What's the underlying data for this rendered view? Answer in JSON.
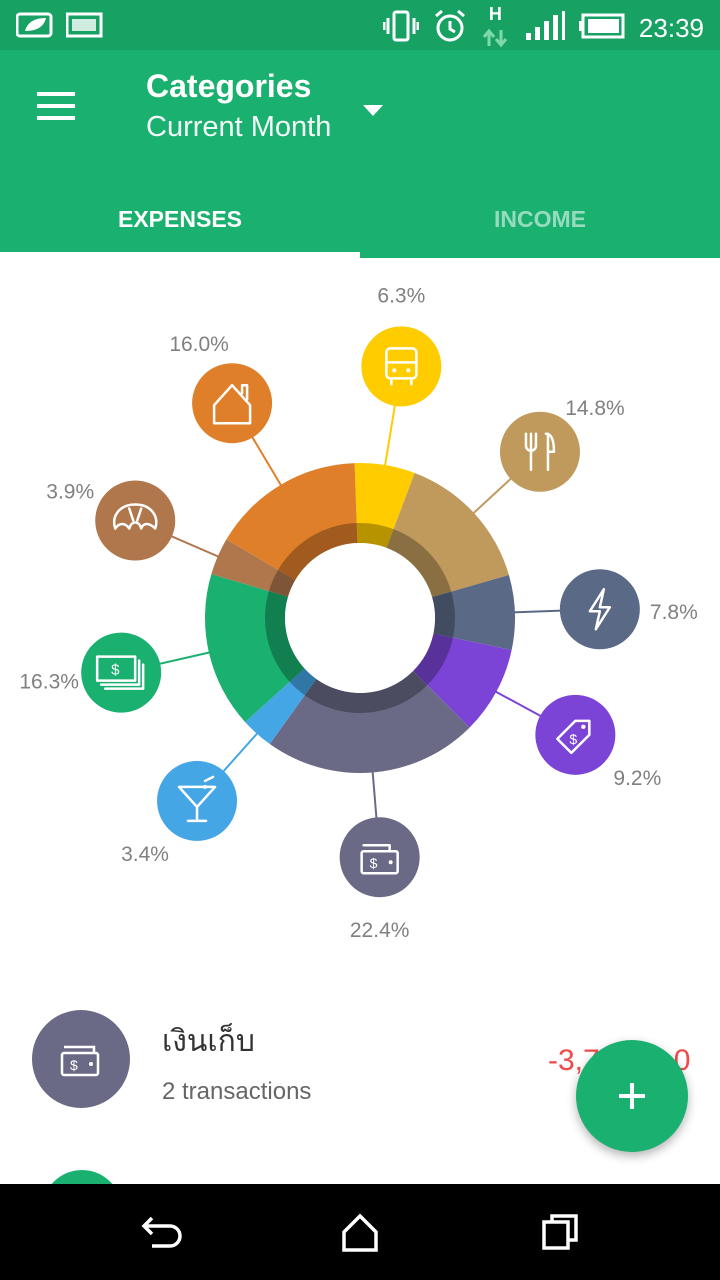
{
  "status_bar": {
    "time": "23:39",
    "network_label": "H",
    "icons": [
      "leaf-notification-icon",
      "image-notification-icon",
      "vibrate-icon",
      "alarm-icon",
      "data-arrows-icon",
      "signal-icon",
      "battery-icon"
    ]
  },
  "app_bar": {
    "title": "Categories",
    "subtitle": "Current Month",
    "background": "#1ab06f"
  },
  "tabs": [
    {
      "label": "EXPENSES",
      "active": true
    },
    {
      "label": "INCOME",
      "active": false
    }
  ],
  "categories": [
    {
      "icon": "bus-icon",
      "percent": "6.3%",
      "value": 6.3,
      "color": "#ffcc00"
    },
    {
      "icon": "fork-knife-icon",
      "percent": "14.8%",
      "value": 14.8,
      "color": "#bf9a5c"
    },
    {
      "icon": "lightning-icon",
      "percent": "7.8%",
      "value": 7.8,
      "color": "#5a6a86"
    },
    {
      "icon": "price-tag-icon",
      "percent": "9.2%",
      "value": 9.2,
      "color": "#7b44d6"
    },
    {
      "icon": "wallet-icon",
      "percent": "22.4%",
      "value": 22.4,
      "color": "#6a6a86"
    },
    {
      "icon": "cocktail-icon",
      "percent": "3.4%",
      "value": 3.4,
      "color": "#45a6e6"
    },
    {
      "icon": "cash-icon",
      "percent": "16.3%",
      "value": 16.3,
      "color": "#1ab06f"
    },
    {
      "icon": "croissant-icon",
      "percent": "3.9%",
      "value": 3.9,
      "color": "#b0774d"
    },
    {
      "icon": "house-icon",
      "percent": "16.0%",
      "value": 16.0,
      "color": "#e07f2a"
    }
  ],
  "list": [
    {
      "name": "เงินเก็บ",
      "sub": "2 transactions",
      "amount": "-3,7",
      "amount_tail": "0",
      "color": "#6a6a86"
    }
  ],
  "colors": {
    "accent": "#1ab06f",
    "negative": "#f04a4a"
  }
}
